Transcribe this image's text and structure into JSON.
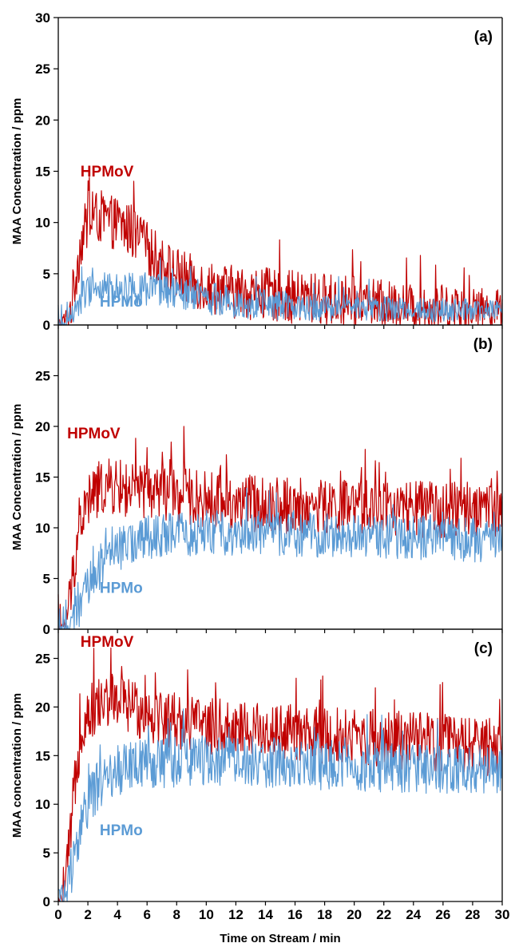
{
  "figure": {
    "xlabel": "Time on Stream / min",
    "xlim": [
      0,
      30
    ],
    "xticks": [
      0,
      2,
      4,
      6,
      8,
      10,
      12,
      14,
      16,
      18,
      20,
      22,
      24,
      26,
      28,
      30
    ]
  },
  "colors": {
    "HPMoV": "#c00000",
    "HPMo": "#5b9bd5",
    "axis": "#000000"
  },
  "chart_data": [
    {
      "type": "line",
      "panel_tag": "(a)",
      "ylabel": "MAA Concentration / ppm",
      "ylim": [
        0,
        30
      ],
      "yticks": [
        0,
        5,
        10,
        15,
        20,
        25,
        30
      ],
      "xlim": [
        0,
        30
      ],
      "grid": false,
      "series": [
        {
          "name": "HPMoV",
          "color": "#c00000",
          "x": [
            0,
            0.5,
            0.8,
            1.0,
            1.3,
            1.6,
            2.0,
            2.5,
            3.0,
            3.5,
            4.0,
            5.0,
            6.0,
            7.0,
            8.0,
            9.0,
            10.0,
            12.0,
            14.0,
            16.0,
            18.0,
            20.0,
            22.0,
            24.0,
            26.0,
            28.0,
            30.0
          ],
          "y": [
            0,
            0.5,
            1.5,
            3,
            6,
            8.5,
            10,
            10.5,
            10.5,
            10,
            10,
            9,
            7.5,
            6,
            5,
            4.3,
            3.8,
            3.2,
            3,
            2.7,
            2.5,
            2.2,
            2,
            1.8,
            1.7,
            1.6,
            1.5
          ],
          "noise": 2.6,
          "peak": [
            2.3,
            13
          ]
        },
        {
          "name": "HPMo",
          "color": "#5b9bd5",
          "x": [
            0,
            0.5,
            0.8,
            1.0,
            1.3,
            1.6,
            2.0,
            2.5,
            3.0,
            4.0,
            5.0,
            6.0,
            7.0,
            8.0,
            10.0,
            12.0,
            14.0,
            16.0,
            18.0,
            20.0,
            22.0,
            24.0,
            26.0,
            28.0,
            30.0
          ],
          "y": [
            0,
            0,
            0.3,
            1,
            2,
            2.8,
            3.3,
            3.5,
            3.5,
            3.6,
            3.6,
            3.5,
            3.3,
            3,
            2.6,
            2.3,
            2,
            1.8,
            1.7,
            1.7,
            1.6,
            1.5,
            1.5,
            1.4,
            1.3
          ],
          "noise": 1.6
        }
      ],
      "labels": [
        {
          "text": "HPMoV",
          "series": "HPMoV",
          "x": 1.5,
          "y": 14.5
        },
        {
          "text": "HPMo",
          "series": "HPMo",
          "x": 2.8,
          "y": 1.8
        }
      ]
    },
    {
      "type": "line",
      "panel_tag": "(b)",
      "ylabel": "MAA Concentration / ppm",
      "ylim": [
        0,
        30
      ],
      "yticks": [
        0,
        5,
        10,
        15,
        20,
        25
      ],
      "xlim": [
        0,
        30
      ],
      "grid": false,
      "series": [
        {
          "name": "HPMoV",
          "color": "#c00000",
          "x": [
            0,
            0.3,
            0.5,
            0.8,
            1.0,
            1.3,
            1.6,
            2.0,
            2.5,
            3.0,
            4.0,
            5.0,
            6.0,
            7.0,
            8.0,
            10.0,
            12.0,
            14.0,
            16.0,
            18.0,
            20.0,
            22.0,
            24.0,
            26.0,
            28.0,
            30.0
          ],
          "y": [
            0,
            0,
            0.8,
            3,
            5.5,
            9,
            11,
            12.5,
            13.5,
            14,
            14,
            13.5,
            13.5,
            13.5,
            13.2,
            12.8,
            12.5,
            12.3,
            12.2,
            12,
            12,
            12,
            11.8,
            11.8,
            11.7,
            11.7
          ],
          "noise": 2.8,
          "peak": [
            8.5,
            20
          ]
        },
        {
          "name": "HPMo",
          "color": "#5b9bd5",
          "x": [
            0,
            0.5,
            0.8,
            1.0,
            1.5,
            2.0,
            2.5,
            3.0,
            3.5,
            4.0,
            5.0,
            6.0,
            7.0,
            8.0,
            10.0,
            12.0,
            14.0,
            16.0,
            18.0,
            20.0,
            22.0,
            24.0,
            26.0,
            28.0,
            30.0
          ],
          "y": [
            0,
            0,
            0.3,
            1,
            2.5,
            4,
            5.5,
            6.5,
            7.2,
            7.8,
            8.5,
            9,
            9.2,
            9.3,
            9.5,
            9.5,
            9.5,
            9.3,
            9.3,
            9.2,
            9.2,
            9,
            9,
            8.8,
            8.8
          ],
          "noise": 2.2
        }
      ],
      "labels": [
        {
          "text": "HPMoV",
          "series": "HPMoV",
          "x": 0.6,
          "y": 18.8
        },
        {
          "text": "HPMo",
          "series": "HPMo",
          "x": 2.8,
          "y": 3.6
        }
      ]
    },
    {
      "type": "line",
      "panel_tag": "(c)",
      "ylabel": "MAA concentration / ppm",
      "ylim": [
        0,
        28
      ],
      "yticks": [
        0,
        5,
        10,
        15,
        20,
        25
      ],
      "xlim": [
        0,
        30
      ],
      "grid": false,
      "series": [
        {
          "name": "HPMoV",
          "color": "#c00000",
          "x": [
            0,
            0.3,
            0.5,
            0.8,
            1.0,
            1.3,
            1.6,
            2.0,
            2.5,
            3.0,
            4.0,
            5.0,
            6.0,
            7.0,
            8.0,
            10.0,
            12.0,
            14.0,
            16.0,
            18.0,
            20.0,
            22.0,
            24.0,
            26.0,
            28.0,
            30.0
          ],
          "y": [
            0,
            0,
            2,
            6,
            10,
            15,
            18,
            19.5,
            20,
            20.5,
            20.5,
            20,
            19.5,
            19,
            18.7,
            18,
            17.8,
            17.5,
            17.3,
            17,
            17,
            16.8,
            16.5,
            16.3,
            16,
            15.5
          ],
          "noise": 3.0
        },
        {
          "name": "HPMo",
          "color": "#5b9bd5",
          "x": [
            0,
            0.3,
            0.6,
            1.0,
            1.5,
            2.0,
            2.5,
            3.0,
            4.0,
            5.0,
            6.0,
            7.0,
            8.0,
            10.0,
            12.0,
            14.0,
            16.0,
            18.0,
            20.0,
            22.0,
            24.0,
            26.0,
            28.0,
            30.0
          ],
          "y": [
            0.5,
            0.8,
            1.5,
            4,
            7.5,
            10,
            11.5,
            12.5,
            13.5,
            14,
            14.2,
            14.3,
            14.3,
            14.5,
            14.5,
            14.3,
            14.2,
            14,
            14,
            13.8,
            13.7,
            13.6,
            13.5,
            13.3
          ],
          "noise": 2.6
        }
      ],
      "labels": [
        {
          "text": "HPMoV",
          "series": "HPMoV",
          "x": 1.5,
          "y": 26.2
        },
        {
          "text": "HPMo",
          "series": "HPMo",
          "x": 2.8,
          "y": 6.8
        }
      ]
    }
  ]
}
